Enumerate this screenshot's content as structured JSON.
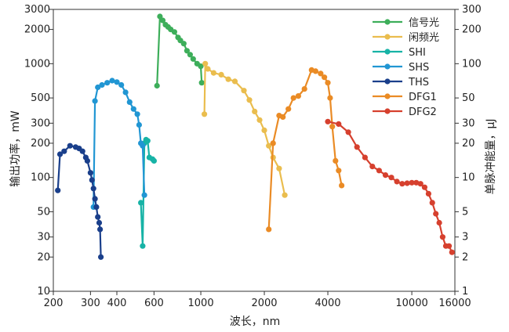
{
  "chart_data": {
    "type": "line",
    "xlabel": "波长，nm",
    "ylabel_left": "输出功率，mW",
    "ylabel_right": "单脉冲能量，μJ",
    "x_scale": "log",
    "y_scale": "log",
    "xlim": [
      200,
      16000
    ],
    "ylim": [
      10,
      3000
    ],
    "y2lim": [
      1,
      300
    ],
    "x_ticks": [
      200,
      300,
      400,
      600,
      1000,
      2000,
      4000,
      10000,
      16000
    ],
    "x_tick_labels": [
      "200",
      "300",
      "400",
      "600",
      "1000",
      "2000",
      "4000",
      "10000",
      "16000"
    ],
    "y_ticks": [
      10,
      20,
      30,
      50,
      100,
      200,
      300,
      500,
      1000,
      2000,
      3000
    ],
    "y_tick_labels": [
      "10",
      "20",
      "30",
      "50",
      "100",
      "200",
      "300",
      "500",
      "1000",
      "2000",
      "3000"
    ],
    "y2_ticks": [
      1,
      2,
      3,
      5,
      10,
      20,
      30,
      50,
      100,
      200,
      300
    ],
    "y2_tick_labels": [
      "1",
      "2",
      "3",
      "5",
      "10",
      "20",
      "30",
      "50",
      "100",
      "200",
      "300"
    ],
    "grid": false,
    "legend_position": "top-right",
    "series": [
      {
        "name": "信号光",
        "color": "#3dae5a",
        "points": [
          [
            620,
            640
          ],
          [
            640,
            2600
          ],
          [
            660,
            2400
          ],
          [
            680,
            2200
          ],
          [
            700,
            2100
          ],
          [
            720,
            2000
          ],
          [
            750,
            1900
          ],
          [
            780,
            1700
          ],
          [
            800,
            1600
          ],
          [
            830,
            1500
          ],
          [
            860,
            1300
          ],
          [
            890,
            1200
          ],
          [
            920,
            1100
          ],
          [
            960,
            1000
          ],
          [
            1000,
            950
          ],
          [
            1010,
            680
          ]
        ]
      },
      {
        "name": "闲频光",
        "color": "#eabd4e",
        "points": [
          [
            1040,
            360
          ],
          [
            1050,
            1000
          ],
          [
            1080,
            900
          ],
          [
            1150,
            830
          ],
          [
            1250,
            800
          ],
          [
            1350,
            730
          ],
          [
            1450,
            700
          ],
          [
            1600,
            580
          ],
          [
            1700,
            480
          ],
          [
            1800,
            380
          ],
          [
            1900,
            320
          ],
          [
            2000,
            260
          ],
          [
            2100,
            190
          ],
          [
            2200,
            150
          ],
          [
            2350,
            120
          ],
          [
            2500,
            70
          ]
        ]
      },
      {
        "name": "SHI",
        "color": "#17b3a6",
        "points": [
          [
            520,
            60
          ],
          [
            530,
            25
          ],
          [
            540,
            200
          ],
          [
            550,
            215
          ],
          [
            560,
            210
          ],
          [
            570,
            150
          ],
          [
            590,
            145
          ],
          [
            600,
            140
          ]
        ]
      },
      {
        "name": "SHS",
        "color": "#2196d3",
        "points": [
          [
            310,
            55
          ],
          [
            315,
            470
          ],
          [
            325,
            620
          ],
          [
            340,
            650
          ],
          [
            360,
            680
          ],
          [
            380,
            710
          ],
          [
            400,
            690
          ],
          [
            420,
            650
          ],
          [
            440,
            560
          ],
          [
            460,
            460
          ],
          [
            480,
            400
          ],
          [
            500,
            360
          ],
          [
            510,
            290
          ],
          [
            520,
            200
          ],
          [
            530,
            190
          ],
          [
            540,
            70
          ]
        ]
      },
      {
        "name": "THS",
        "color": "#1a3f8b",
        "points": [
          [
            210,
            77
          ],
          [
            215,
            160
          ],
          [
            225,
            170
          ],
          [
            240,
            190
          ],
          [
            255,
            185
          ],
          [
            265,
            180
          ],
          [
            275,
            170
          ],
          [
            285,
            150
          ],
          [
            290,
            140
          ],
          [
            300,
            110
          ],
          [
            305,
            95
          ],
          [
            310,
            80
          ],
          [
            315,
            65
          ],
          [
            320,
            55
          ],
          [
            325,
            45
          ],
          [
            330,
            40
          ],
          [
            333,
            35
          ],
          [
            336,
            20
          ]
        ]
      },
      {
        "name": "DFG1",
        "color": "#ea8b25",
        "points": [
          [
            2100,
            35
          ],
          [
            2200,
            200
          ],
          [
            2350,
            350
          ],
          [
            2450,
            340
          ],
          [
            2600,
            400
          ],
          [
            2750,
            500
          ],
          [
            2900,
            520
          ],
          [
            3100,
            600
          ],
          [
            3350,
            880
          ],
          [
            3500,
            860
          ],
          [
            3700,
            820
          ],
          [
            3850,
            760
          ],
          [
            4000,
            680
          ],
          [
            4100,
            500
          ],
          [
            4200,
            280
          ],
          [
            4350,
            140
          ],
          [
            4500,
            115
          ],
          [
            4650,
            85
          ]
        ]
      },
      {
        "name": "DFG2",
        "color": "#d6402e",
        "points": [
          [
            4000,
            310
          ],
          [
            4500,
            295
          ],
          [
            5000,
            250
          ],
          [
            5500,
            185
          ],
          [
            6000,
            150
          ],
          [
            6500,
            125
          ],
          [
            7000,
            115
          ],
          [
            7500,
            105
          ],
          [
            8000,
            100
          ],
          [
            8500,
            92
          ],
          [
            9000,
            88
          ],
          [
            9500,
            89
          ],
          [
            10000,
            90
          ],
          [
            10500,
            90
          ],
          [
            11000,
            88
          ],
          [
            11500,
            82
          ],
          [
            12000,
            72
          ],
          [
            12500,
            60
          ],
          [
            13000,
            48
          ],
          [
            13500,
            40
          ],
          [
            14000,
            30
          ],
          [
            14500,
            25
          ],
          [
            15000,
            25
          ],
          [
            15500,
            22
          ]
        ]
      }
    ]
  }
}
